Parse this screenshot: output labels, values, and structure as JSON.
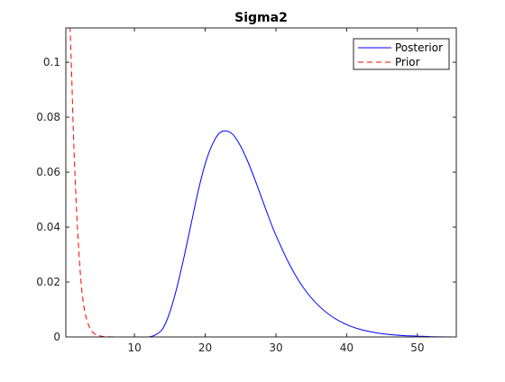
{
  "chart_data": {
    "type": "line",
    "title": "Sigma2",
    "xlabel": "",
    "ylabel": "",
    "xlim": [
      0.3,
      55.5
    ],
    "ylim": [
      0,
      0.1125
    ],
    "xticks": [
      10,
      20,
      30,
      40,
      50
    ],
    "yticks": [
      0,
      0.02,
      0.04,
      0.06,
      0.08,
      0.1
    ],
    "xtick_labels": [
      "10",
      "20",
      "30",
      "40",
      "50"
    ],
    "ytick_labels": [
      "0",
      "0.02",
      "0.04",
      "0.06",
      "0.08",
      "0.1"
    ],
    "grid": false,
    "legend_position": "top-right",
    "series": [
      {
        "name": "Posterior",
        "color": "#0000ff",
        "style": "solid",
        "x": [
          10,
          12,
          13,
          14,
          15,
          16,
          17,
          18,
          19,
          20,
          21,
          22,
          23,
          24,
          25,
          26,
          27,
          28,
          29,
          30,
          32,
          34,
          36,
          38,
          40,
          42,
          44,
          46,
          48,
          50,
          52,
          55
        ],
        "y": [
          0,
          0,
          0.0008,
          0.003,
          0.009,
          0.018,
          0.029,
          0.041,
          0.053,
          0.063,
          0.07,
          0.0742,
          0.075,
          0.0735,
          0.0695,
          0.064,
          0.0575,
          0.0505,
          0.0435,
          0.037,
          0.026,
          0.0175,
          0.0115,
          0.0073,
          0.0045,
          0.0027,
          0.0016,
          0.0009,
          0.0005,
          0.0003,
          0.0001,
          0
        ]
      },
      {
        "name": "Prior",
        "color": "#ff0000",
        "style": "dashed",
        "x": [
          0.9,
          1.0,
          1.1,
          1.3,
          1.5,
          1.8,
          2.0,
          2.3,
          2.6,
          3.0,
          3.5,
          4.0,
          4.5,
          5.0,
          6.0,
          8.0,
          12.0,
          20.0,
          30.0,
          40.0,
          55.0
        ],
        "y": [
          0.113,
          0.105,
          0.098,
          0.08,
          0.065,
          0.047,
          0.037,
          0.025,
          0.016,
          0.009,
          0.0045,
          0.002,
          0.0009,
          0.0004,
          0.0001,
          0,
          0,
          0,
          0,
          0,
          0
        ]
      }
    ]
  }
}
